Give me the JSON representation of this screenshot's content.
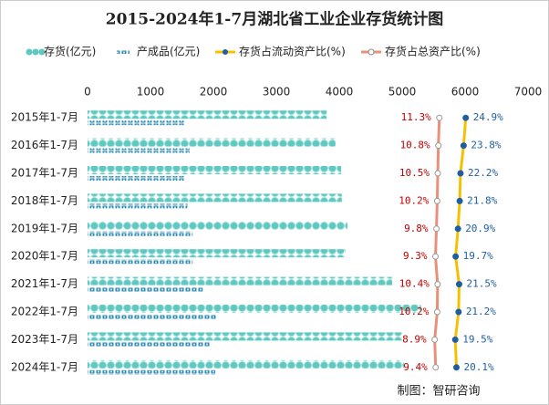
{
  "chart_data": {
    "type": "bar",
    "title": "2015-2024年1-7月湖北省工业企业存货统计图",
    "categories": [
      "2015年1-7月",
      "2016年1-7月",
      "2017年1-7月",
      "2018年1-7月",
      "2019年1-7月",
      "2020年1-7月",
      "2021年1-7月",
      "2022年1-7月",
      "2023年1-7月",
      "2024年1-7月"
    ],
    "xlim": [
      0,
      7000
    ],
    "xticks": [
      0,
      1000,
      2000,
      3000,
      4000,
      5000,
      6000,
      7000
    ],
    "x2lim": [
      -170,
      57
    ],
    "series": [
      {
        "name": "存货(亿元)",
        "color": "#5fc8c0",
        "values": [
          3800,
          3940,
          4030,
          4040,
          4130,
          4100,
          4840,
          5300,
          5000,
          5030
        ]
      },
      {
        "name": "产成品(亿元)",
        "color": "#2e8ab0",
        "values": [
          1550,
          1620,
          1550,
          1590,
          1670,
          1670,
          1830,
          2040,
          1940,
          2030
        ]
      },
      {
        "name": "存货占流动资产比(%)",
        "color": "#f5c000",
        "axis": "x2",
        "values": [
          24.9,
          23.8,
          22.2,
          21.8,
          20.9,
          19.7,
          21.5,
          21.2,
          19.5,
          20.1
        ],
        "value_labels": [
          "24.9%",
          "23.8%",
          "22.2%",
          "21.8%",
          "20.9%",
          "19.7%",
          "21.5%",
          "21.2%",
          "19.5%",
          "20.1%"
        ]
      },
      {
        "name": "存货占总资产比(%)",
        "color": "#e8907a",
        "axis": "x2",
        "values": [
          11.3,
          10.8,
          10.5,
          10.2,
          9.8,
          9.3,
          10.4,
          10.2,
          8.9,
          9.4
        ],
        "value_labels": [
          "11.3%",
          "10.8%",
          "10.5%",
          "10.2%",
          "9.8%",
          "9.3%",
          "10.4%",
          "10.2%",
          "8.9%",
          "9.4%"
        ]
      }
    ],
    "source": "制图：智研咨询"
  }
}
